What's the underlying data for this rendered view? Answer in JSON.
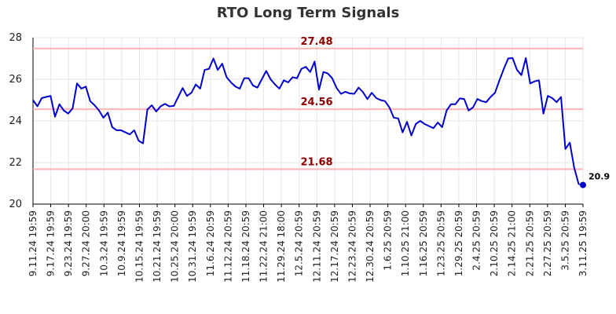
{
  "chart_data": {
    "type": "line",
    "title": "RTO Long Term Signals",
    "xlabel": "",
    "ylabel": "",
    "ylim": [
      20,
      28
    ],
    "y_ticks": [
      "20",
      "22",
      "24",
      "26",
      "28"
    ],
    "x_tick_labels": [
      "9.11.24 19:59",
      "9.17.24 19:59",
      "9.23.24 19:59",
      "9.27.24 20:00",
      "10.3.24 19:59",
      "10.9.24 19:59",
      "10.15.24 19:59",
      "10.21.24 19:59",
      "10.25.24 20:00",
      "10.31.24 19:59",
      "11.6.24 20:59",
      "11.12.24 20:59",
      "11.18.24 20:59",
      "11.22.24 21:00",
      "11.29.24 18:00",
      "12.5.24 20:59",
      "12.11.24 20:59",
      "12.17.24 20:59",
      "12.23.24 20:59",
      "12.30.24 20:59",
      "1.6.25 20:59",
      "1.10.25 21:00",
      "1.16.25 20:59",
      "1.23.25 20:59",
      "1.29.25 20:59",
      "2.4.25 20:59",
      "2.10.25 20:59",
      "2.14.25 21:00",
      "2.21.25 20:59",
      "2.27.25 20:59",
      "3.5.25 20:59",
      "3.11.25 19:59"
    ],
    "values": [
      25.0,
      24.7,
      25.1,
      25.15,
      25.2,
      24.2,
      24.8,
      24.5,
      24.35,
      24.6,
      25.8,
      25.55,
      25.65,
      24.95,
      24.75,
      24.5,
      24.15,
      24.4,
      23.7,
      23.55,
      23.55,
      23.45,
      23.35,
      23.55,
      23.05,
      22.92,
      24.55,
      24.75,
      24.45,
      24.7,
      24.82,
      24.7,
      24.72,
      25.15,
      25.58,
      25.2,
      25.35,
      25.75,
      25.55,
      26.45,
      26.5,
      27.0,
      26.45,
      26.75,
      26.1,
      25.85,
      25.65,
      25.55,
      26.05,
      26.05,
      25.7,
      25.6,
      26.0,
      26.4,
      26.0,
      25.75,
      25.55,
      25.95,
      25.85,
      26.1,
      26.05,
      26.5,
      26.6,
      26.35,
      26.85,
      25.5,
      26.35,
      26.28,
      26.05,
      25.58,
      25.3,
      25.4,
      25.32,
      25.3,
      25.6,
      25.38,
      25.05,
      25.35,
      25.1,
      25.0,
      24.95,
      24.65,
      24.15,
      24.12,
      23.45,
      23.95,
      23.3,
      23.85,
      24.0,
      23.85,
      23.75,
      23.65,
      23.92,
      23.7,
      24.5,
      24.8,
      24.8,
      25.08,
      25.05,
      24.5,
      24.65,
      25.05,
      24.95,
      24.9,
      25.15,
      25.35,
      25.95,
      26.5,
      27.0,
      27.02,
      26.45,
      26.2,
      27.02,
      25.8,
      25.9,
      25.95,
      24.35,
      25.2,
      25.1,
      24.9,
      25.15,
      22.65,
      22.95,
      21.75,
      20.97,
      20.92
    ],
    "reference_lines": [
      {
        "value": 27.48,
        "label": "27.48"
      },
      {
        "value": 24.56,
        "label": "24.56"
      },
      {
        "value": 21.68,
        "label": "21.68"
      }
    ],
    "last_value_label": "20.9",
    "grid": true,
    "legend": "none",
    "colors": {
      "line": "#0000cc",
      "reference_line": "#ffb3b3",
      "reference_label": "#8b0000",
      "grid": "#e6e6e6",
      "axis": "#000000"
    }
  }
}
